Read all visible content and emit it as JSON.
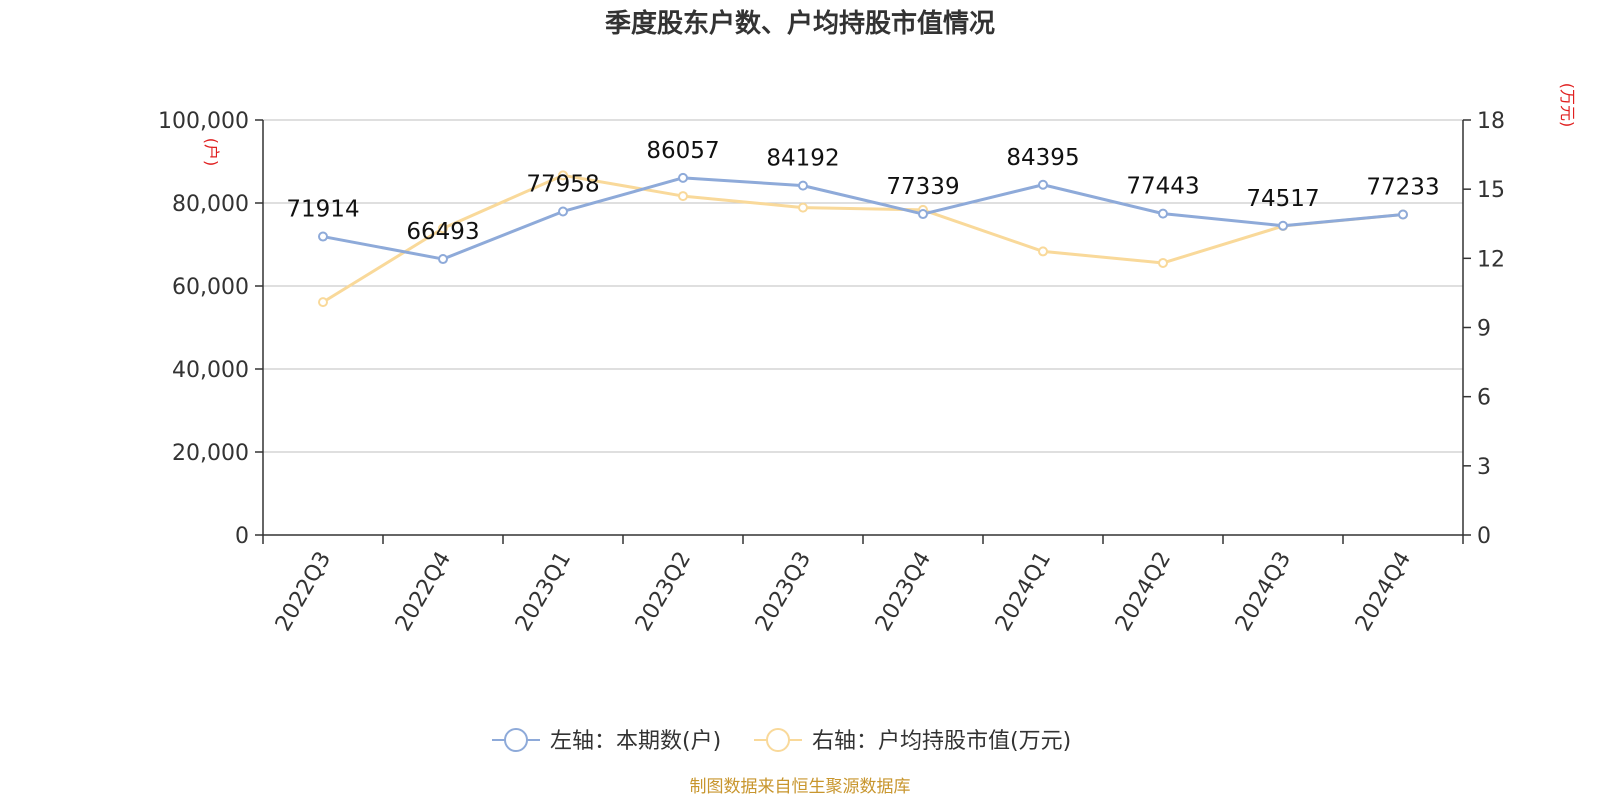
{
  "chart_data": {
    "type": "line",
    "title": "季度股东户数、户均持股市值情况",
    "categories": [
      "2022Q3",
      "2022Q4",
      "2023Q1",
      "2023Q2",
      "2023Q3",
      "2023Q4",
      "2024Q1",
      "2024Q2",
      "2024Q3",
      "2024Q4"
    ],
    "left_axis": {
      "unit": "(户)",
      "ylim": [
        0,
        100000
      ],
      "ticks": [
        "0",
        "20,000",
        "40,000",
        "60,000",
        "80,000",
        "100,000"
      ],
      "tick_values": [
        0,
        20000,
        40000,
        60000,
        80000,
        100000
      ]
    },
    "right_axis": {
      "unit": "(万元)",
      "ylim": [
        0,
        18
      ],
      "ticks": [
        "0",
        "3",
        "6",
        "9",
        "12",
        "15",
        "18"
      ],
      "tick_values": [
        0,
        3,
        6,
        9,
        12,
        15,
        18
      ]
    },
    "series": [
      {
        "name": "左轴：本期数(户)",
        "axis": "left",
        "color": "#8eaad9",
        "values": [
          71914,
          66493,
          77958,
          86057,
          84192,
          77339,
          84395,
          77443,
          74517,
          77233
        ],
        "labels": [
          "71914",
          "66493",
          "77958",
          "86057",
          "84192",
          "77339",
          "84395",
          "77443",
          "74517",
          "77233"
        ]
      },
      {
        "name": "右轴：户均持股市值(万元)",
        "axis": "right",
        "color": "#f9d99a",
        "values": [
          10.1,
          13.3,
          15.6,
          14.7,
          14.2,
          14.1,
          12.3,
          11.8,
          13.4,
          13.9
        ]
      }
    ],
    "grid": true,
    "legend": "bottom",
    "unit_color": "#e02020"
  },
  "source": {
    "text": "制图数据来自恒生聚源数据库",
    "color": "#c8962e"
  }
}
